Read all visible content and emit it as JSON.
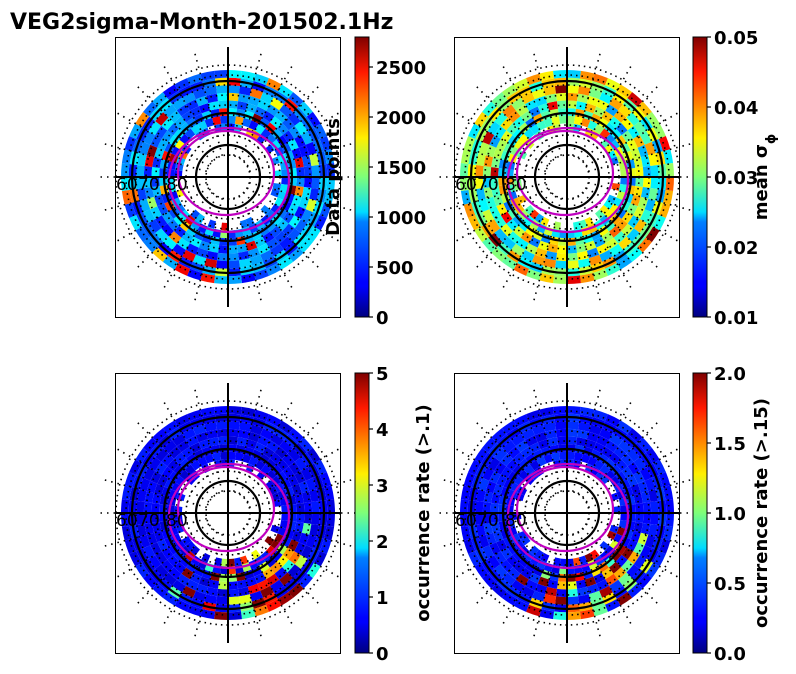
{
  "chart_data": {
    "title": "VEG2sigma-Month-201502.1Hz",
    "type": "heatmap",
    "panels": [
      {
        "name": "data-points",
        "projection": "polar-mlat-mlt",
        "lat_labels": [
          "60",
          "70",
          "80"
        ],
        "colorbar": {
          "label": "Data points",
          "range": [
            0,
            2800
          ],
          "ticks": [
            "0",
            "500",
            "1000",
            "1500",
            "2000",
            "2500"
          ],
          "tick_values": [
            0,
            500,
            1000,
            1500,
            2000,
            2500
          ]
        },
        "pattern": "uniform",
        "level": 0.12,
        "magenta_oval": true
      },
      {
        "name": "mean-sigma-phi",
        "projection": "polar-mlat-mlt",
        "lat_labels": [
          "60",
          "70",
          "80"
        ],
        "colorbar": {
          "label": "mean σ",
          "label_subscript": "ϕ",
          "range": [
            0.01,
            0.05
          ],
          "ticks": [
            "0.01",
            "0.02",
            "0.03",
            "0.04",
            "0.05"
          ],
          "tick_values": [
            0.01,
            0.02,
            0.03,
            0.04,
            0.05
          ]
        },
        "pattern": "broad",
        "level": 0.45,
        "magenta_oval": true
      },
      {
        "name": "occurrence-rate-0.1",
        "projection": "polar-mlat-mlt",
        "lat_labels": [
          "60",
          "70",
          "80"
        ],
        "colorbar": {
          "label": "occurrence rate (>.1)",
          "range": [
            0,
            5
          ],
          "ticks": [
            "0",
            "1",
            "2",
            "3",
            "4",
            "5"
          ],
          "tick_values": [
            0,
            1,
            2,
            3,
            4,
            5
          ]
        },
        "pattern": "dawn-peak",
        "level": 0.08,
        "magenta_oval": true
      },
      {
        "name": "occurrence-rate-0.15",
        "projection": "polar-mlat-mlt",
        "lat_labels": [
          "60",
          "70",
          "80"
        ],
        "colorbar": {
          "label": "occurrence rate (>.15)",
          "range": [
            0,
            2
          ],
          "ticks": [
            "0.0",
            "0.5",
            "1.0",
            "1.5",
            "2.0"
          ],
          "tick_values": [
            0,
            0.5,
            1.0,
            1.5,
            2.0
          ]
        },
        "pattern": "dawn-peak",
        "level": 0.1,
        "magenta_oval": true
      }
    ]
  }
}
